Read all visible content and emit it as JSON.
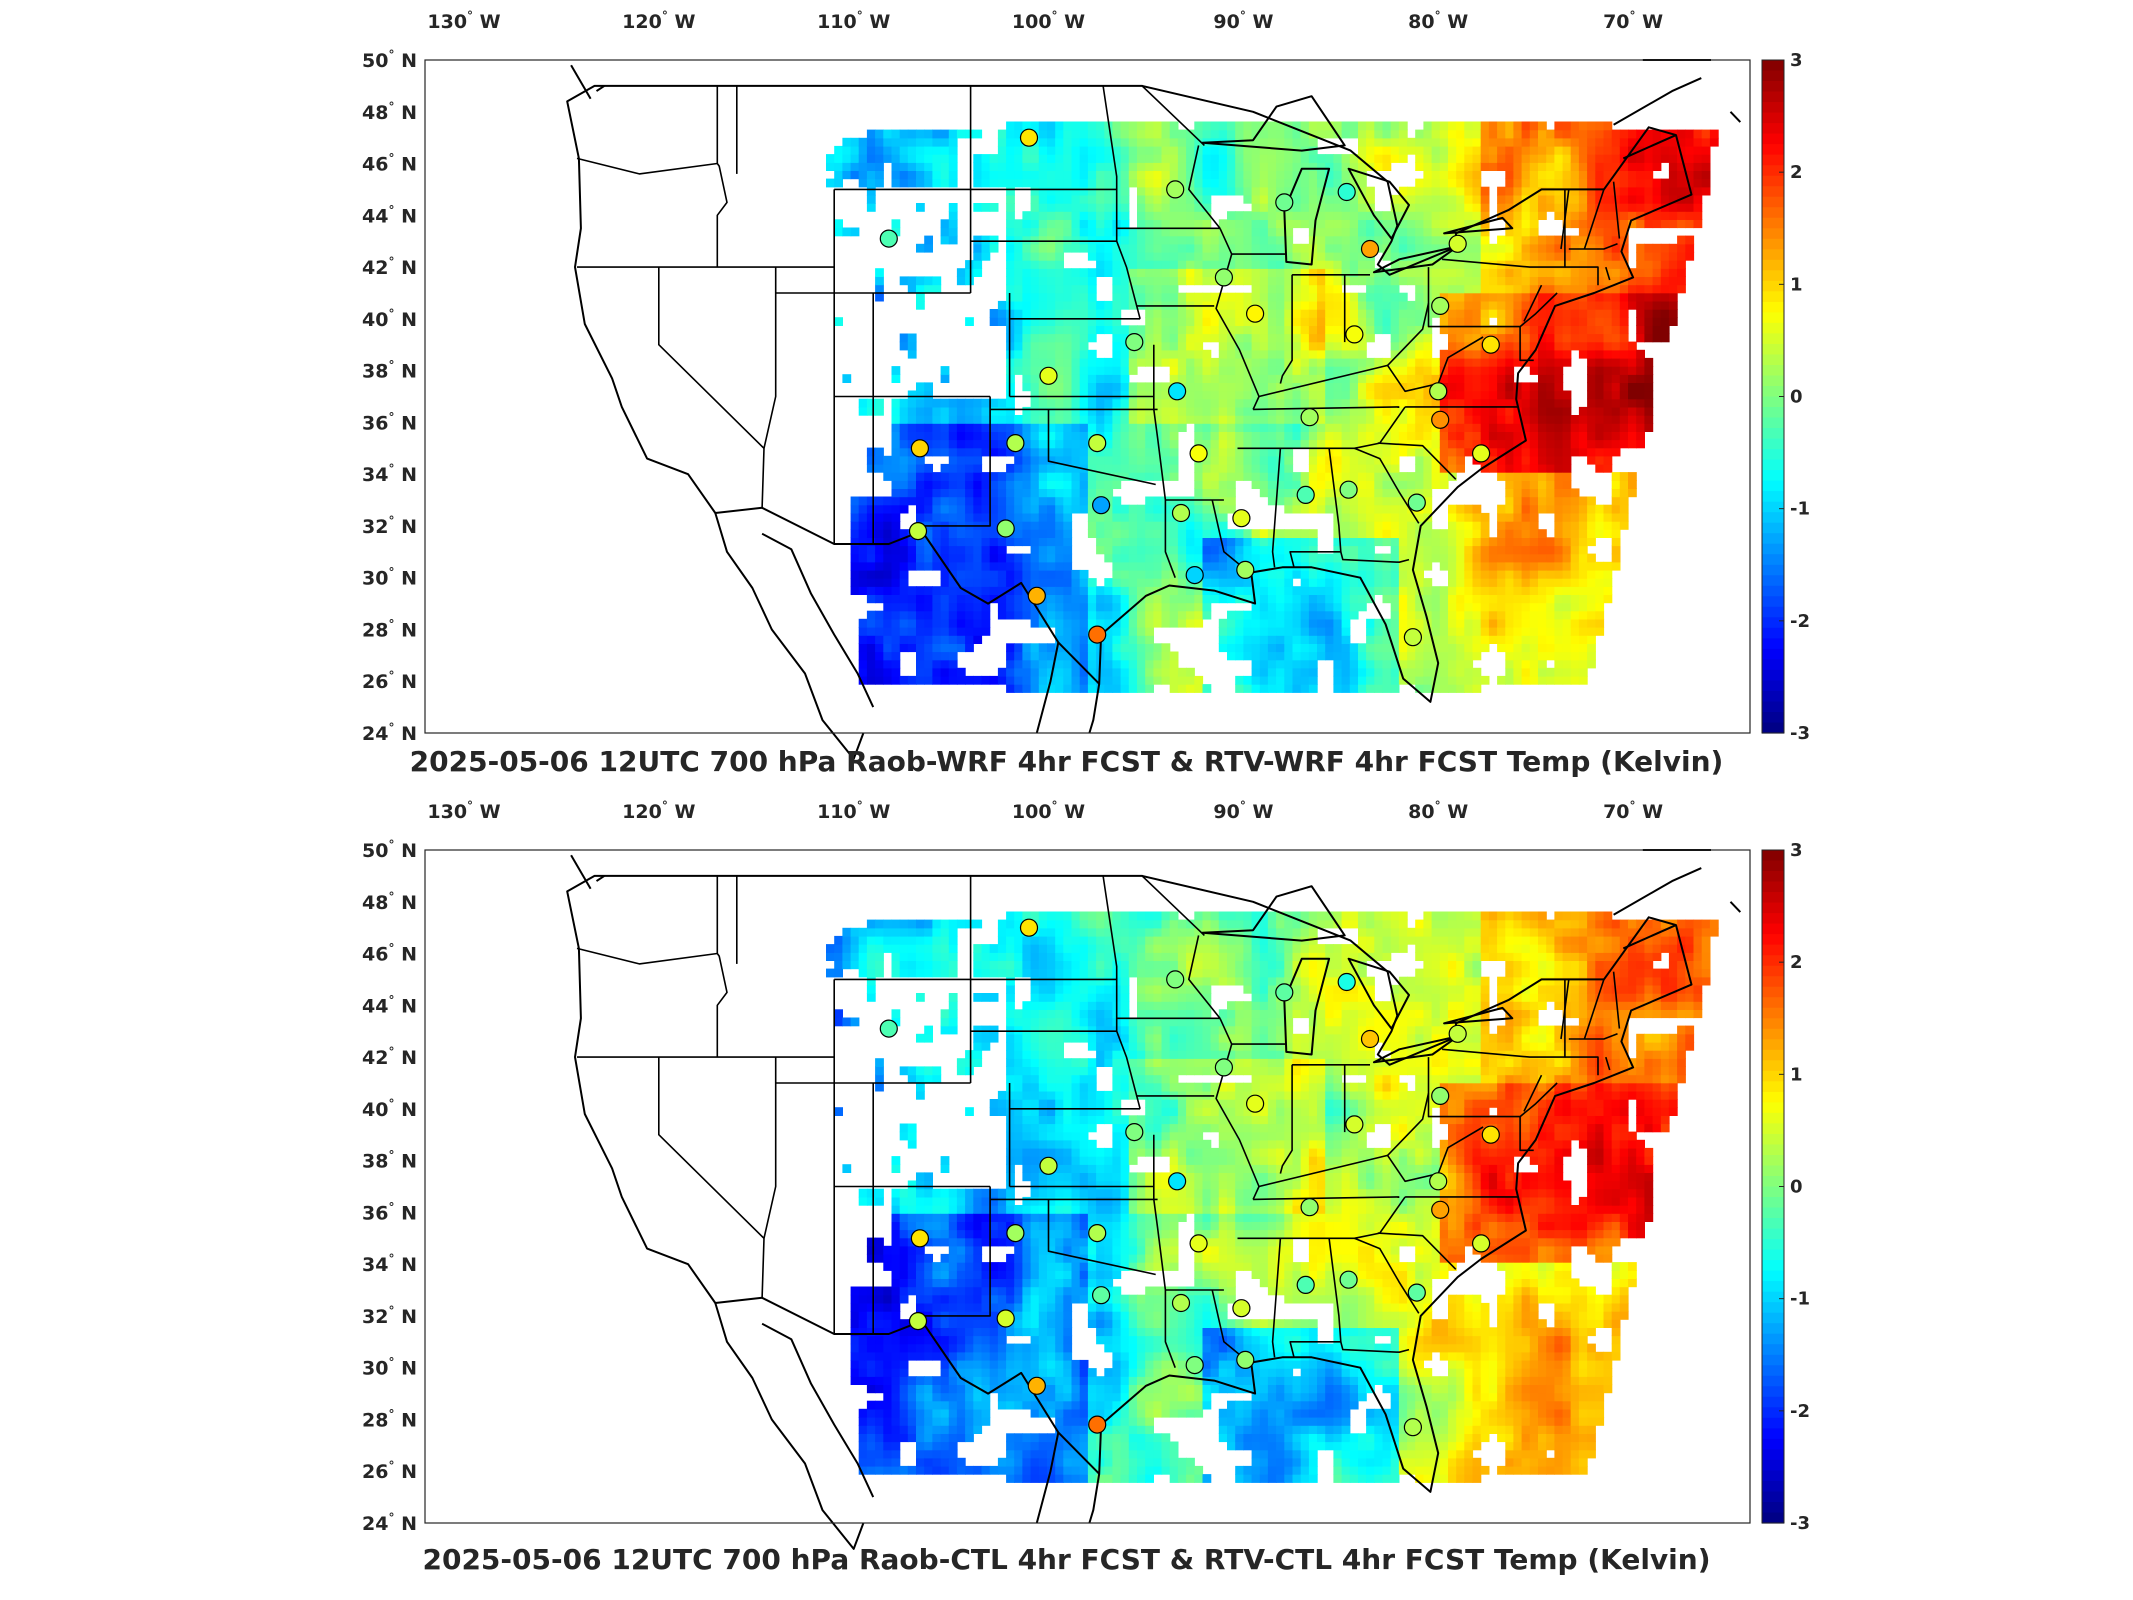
{
  "panels": [
    {
      "title": "2025-05-06 12UTC 700 hPa Raob-WRF 4hr FCST & RTV-WRF 4hr FCST Temp (Kelvin)",
      "model": "WRF"
    },
    {
      "title": "2025-05-06 12UTC 700 hPa Raob-CTL 4hr FCST & RTV-CTL 4hr FCST Temp (Kelvin)",
      "model": "CTL"
    }
  ],
  "map": {
    "lon_range": [
      -132,
      -64
    ],
    "lat_range": [
      24,
      50
    ],
    "lon_ticks": [
      {
        "value": -130,
        "label": "130",
        "hem": "W"
      },
      {
        "value": -120,
        "label": "120",
        "hem": "W"
      },
      {
        "value": -110,
        "label": "110",
        "hem": "W"
      },
      {
        "value": -100,
        "label": "100",
        "hem": "W"
      },
      {
        "value": -90,
        "label": "90",
        "hem": "W"
      },
      {
        "value": -80,
        "label": "80",
        "hem": "W"
      },
      {
        "value": -70,
        "label": "70",
        "hem": "W"
      }
    ],
    "lat_ticks": [
      {
        "value": 50,
        "label": "50",
        "hem": "N"
      },
      {
        "value": 48,
        "label": "48",
        "hem": "N"
      },
      {
        "value": 46,
        "label": "46",
        "hem": "N"
      },
      {
        "value": 44,
        "label": "44",
        "hem": "N"
      },
      {
        "value": 42,
        "label": "42",
        "hem": "N"
      },
      {
        "value": 40,
        "label": "40",
        "hem": "N"
      },
      {
        "value": 38,
        "label": "38",
        "hem": "N"
      },
      {
        "value": 36,
        "label": "36",
        "hem": "N"
      },
      {
        "value": 34,
        "label": "34",
        "hem": "N"
      },
      {
        "value": 32,
        "label": "32",
        "hem": "N"
      },
      {
        "value": 30,
        "label": "30",
        "hem": "N"
      },
      {
        "value": 28,
        "label": "28",
        "hem": "N"
      },
      {
        "value": 26,
        "label": "26",
        "hem": "N"
      },
      {
        "value": 24,
        "label": "24",
        "hem": "N"
      }
    ],
    "degree_symbol": "°"
  },
  "colorbar": {
    "min": -3,
    "max": 3,
    "ticks": [
      "3",
      "2",
      "1",
      "0",
      "-1",
      "-2",
      "-3"
    ],
    "colormap": "jet"
  },
  "raob_stations": [
    {
      "lon": -101.0,
      "lat": 47.0,
      "wrf": 0.9,
      "ctl": 0.9
    },
    {
      "lon": -108.2,
      "lat": 43.1,
      "wrf": -0.3,
      "ctl": -0.3
    },
    {
      "lon": -93.5,
      "lat": 45.0,
      "wrf": 0.2,
      "ctl": 0.0
    },
    {
      "lon": -87.9,
      "lat": 44.5,
      "wrf": -0.1,
      "ctl": -0.2
    },
    {
      "lon": -84.7,
      "lat": 44.9,
      "wrf": -0.5,
      "ctl": -0.6
    },
    {
      "lon": -83.5,
      "lat": 42.7,
      "wrf": 1.3,
      "ctl": 1.1
    },
    {
      "lon": -79.0,
      "lat": 42.9,
      "wrf": 0.5,
      "ctl": 0.4
    },
    {
      "lon": -91.0,
      "lat": 41.6,
      "wrf": 0.1,
      "ctl": 0.0
    },
    {
      "lon": -89.4,
      "lat": 40.2,
      "wrf": 0.8,
      "ctl": 0.6
    },
    {
      "lon": -84.3,
      "lat": 39.4,
      "wrf": 0.7,
      "ctl": 0.5
    },
    {
      "lon": -79.9,
      "lat": 40.5,
      "wrf": 0.2,
      "ctl": 0.1
    },
    {
      "lon": -77.3,
      "lat": 39.0,
      "wrf": 0.9,
      "ctl": 0.9
    },
    {
      "lon": -95.6,
      "lat": 39.1,
      "wrf": 0.0,
      "ctl": 0.0
    },
    {
      "lon": -100.0,
      "lat": 37.8,
      "wrf": 0.6,
      "ctl": 0.4
    },
    {
      "lon": -93.4,
      "lat": 37.2,
      "wrf": -0.9,
      "ctl": -0.9
    },
    {
      "lon": -86.6,
      "lat": 36.2,
      "wrf": 0.2,
      "ctl": 0.1
    },
    {
      "lon": -80.0,
      "lat": 37.2,
      "wrf": 0.3,
      "ctl": 0.3
    },
    {
      "lon": -79.9,
      "lat": 36.1,
      "wrf": 1.4,
      "ctl": 1.3
    },
    {
      "lon": -106.6,
      "lat": 35.0,
      "wrf": 1.0,
      "ctl": 0.9
    },
    {
      "lon": -101.7,
      "lat": 35.2,
      "wrf": 0.3,
      "ctl": 0.2
    },
    {
      "lon": -97.5,
      "lat": 35.2,
      "wrf": 0.4,
      "ctl": 0.3
    },
    {
      "lon": -92.3,
      "lat": 34.8,
      "wrf": 0.7,
      "ctl": 0.6
    },
    {
      "lon": -86.8,
      "lat": 33.2,
      "wrf": -0.3,
      "ctl": -0.3
    },
    {
      "lon": -84.6,
      "lat": 33.4,
      "wrf": 0.0,
      "ctl": -0.1
    },
    {
      "lon": -77.8,
      "lat": 34.8,
      "wrf": 0.6,
      "ctl": 0.5
    },
    {
      "lon": -81.1,
      "lat": 32.9,
      "wrf": -0.1,
      "ctl": -0.2
    },
    {
      "lon": -97.3,
      "lat": 32.8,
      "wrf": -1.3,
      "ctl": -0.2
    },
    {
      "lon": -102.2,
      "lat": 31.9,
      "wrf": 0.1,
      "ctl": 0.5
    },
    {
      "lon": -106.7,
      "lat": 31.8,
      "wrf": 0.4,
      "ctl": 0.4
    },
    {
      "lon": -93.2,
      "lat": 32.5,
      "wrf": 0.3,
      "ctl": 0.3
    },
    {
      "lon": -90.1,
      "lat": 32.3,
      "wrf": 0.6,
      "ctl": 0.5
    },
    {
      "lon": -92.5,
      "lat": 30.1,
      "wrf": -1.0,
      "ctl": 0.0
    },
    {
      "lon": -89.9,
      "lat": 30.3,
      "wrf": 0.2,
      "ctl": 0.1
    },
    {
      "lon": -100.6,
      "lat": 29.3,
      "wrf": 1.2,
      "ctl": 1.2
    },
    {
      "lon": -97.5,
      "lat": 27.8,
      "wrf": 1.6,
      "ctl": 1.6
    },
    {
      "lon": -81.3,
      "lat": 27.7,
      "wrf": 0.4,
      "ctl": 0.3
    }
  ]
}
